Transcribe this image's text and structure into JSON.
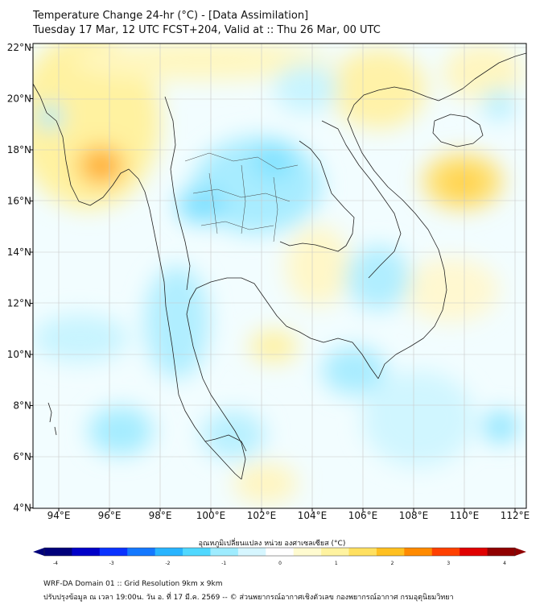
{
  "title": {
    "line1": "Temperature Change 24-hr (°C) - [Data Assimilation]",
    "line2": "Tuesday 17 Mar, 12 UTC FCST+204, Valid at :: Thu 26 Mar, 00 UTC"
  },
  "map": {
    "lon_ticks": [
      "94°E",
      "96°E",
      "98°E",
      "100°E",
      "102°E",
      "104°E",
      "106°E",
      "108°E",
      "110°E",
      "112°E"
    ],
    "lat_ticks": [
      "22°N",
      "20°N",
      "18°N",
      "16°N",
      "14°N",
      "12°N",
      "10°N",
      "8°N",
      "6°N",
      "4°N"
    ]
  },
  "colorbar": {
    "label": "อุณหภูมิเปลี่ยนแปลง หน่วย องศาเซลเซียส (°C)",
    "ticks": [
      "-4",
      "-3",
      "-2",
      "-1",
      "0",
      "1",
      "2",
      "3",
      "4"
    ],
    "colors": [
      "#00007a",
      "#0000c8",
      "#0a32ff",
      "#1478ff",
      "#28b4ff",
      "#50d8ff",
      "#9eecff",
      "#d6f6ff",
      "#ffffff",
      "#fffbd0",
      "#fff3a0",
      "#ffe060",
      "#ffc020",
      "#ff8a00",
      "#ff4000",
      "#e00000",
      "#900000"
    ]
  },
  "footer": {
    "line1": "WRF-DA Domain 01 :: Grid Resolution 9km x 9km",
    "line2": "ปรับปรุงข้อมูล ณ เวลา 19:00น. วัน อ. ที่ 17 มี.ค. 2569 -- © ส่วนพยากรณ์อากาศเชิงตัวเลข กองพยากรณ์อากาศ กรมอุตุนิยมวิทยา"
  }
}
